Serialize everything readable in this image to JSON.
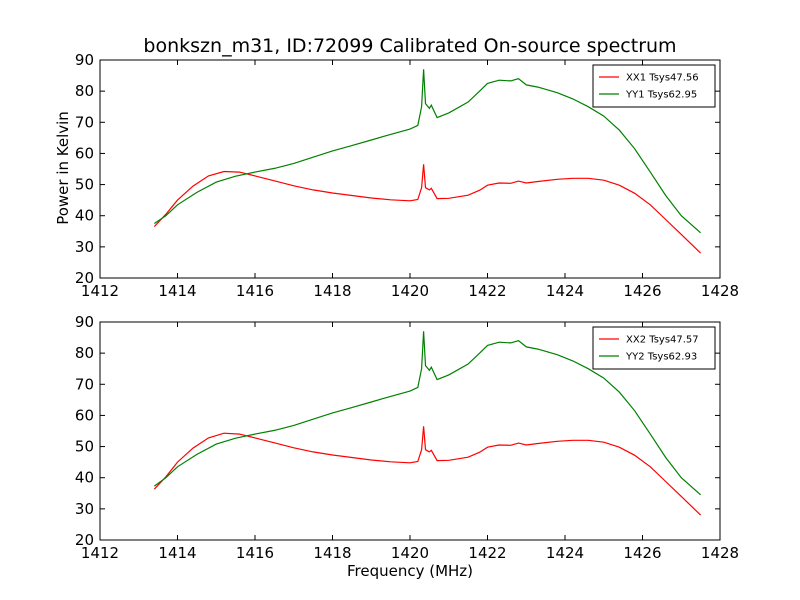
{
  "figure": {
    "title": "bonkszn_m31, ID:72099 Calibrated On-source spectrum",
    "xlabel": "Frequency (MHz)",
    "ylabel": "Power in Kelvin"
  },
  "chart_data": [
    {
      "type": "line",
      "title": "bonkszn_m31, ID:72099 Calibrated On-source spectrum",
      "xlabel": "",
      "ylabel": "Power in Kelvin",
      "xlim": [
        1412,
        1428
      ],
      "ylim": [
        20,
        90
      ],
      "xticks": [
        "1412",
        "1414",
        "1416",
        "1418",
        "1420",
        "1422",
        "1424",
        "1426",
        "1428"
      ],
      "yticks": [
        "20",
        "30",
        "40",
        "50",
        "60",
        "70",
        "80",
        "90"
      ],
      "grid": false,
      "legend_position": "top-right",
      "series": [
        {
          "name": "XX1 Tsys47.56",
          "color": "#ff0000",
          "x": [
            1413.4,
            1413.7,
            1414.0,
            1414.4,
            1414.8,
            1415.2,
            1415.6,
            1416.0,
            1416.5,
            1417.0,
            1417.5,
            1418.0,
            1418.5,
            1419.0,
            1419.5,
            1420.0,
            1420.2,
            1420.3,
            1420.35,
            1420.4,
            1420.5,
            1420.55,
            1420.7,
            1421.0,
            1421.5,
            1421.8,
            1422.0,
            1422.3,
            1422.6,
            1422.8,
            1423.0,
            1423.3,
            1423.8,
            1424.2,
            1424.6,
            1425.0,
            1425.4,
            1425.8,
            1426.2,
            1426.6,
            1427.0,
            1427.5
          ],
          "y": [
            36.5,
            40.5,
            45,
            49.5,
            52.8,
            54.2,
            54,
            52.8,
            51.2,
            49.6,
            48.3,
            47.3,
            46.5,
            45.7,
            45.1,
            44.8,
            45.2,
            49,
            56.5,
            49,
            48.3,
            48.8,
            45.5,
            45.6,
            46.6,
            48.2,
            49.8,
            50.5,
            50.4,
            51.1,
            50.5,
            51.0,
            51.7,
            52.0,
            52.0,
            51.4,
            49.8,
            47.2,
            43.5,
            38.8,
            34,
            28
          ]
        },
        {
          "name": "YY1 Tsys62.95",
          "color": "#008000",
          "x": [
            1413.4,
            1413.7,
            1414.0,
            1414.5,
            1415.0,
            1415.5,
            1416.0,
            1416.5,
            1417.0,
            1417.5,
            1418.0,
            1418.5,
            1419.0,
            1419.5,
            1420.0,
            1420.2,
            1420.3,
            1420.35,
            1420.4,
            1420.5,
            1420.55,
            1420.7,
            1421.0,
            1421.5,
            1421.8,
            1422.0,
            1422.3,
            1422.6,
            1422.8,
            1423.0,
            1423.3,
            1423.8,
            1424.2,
            1424.6,
            1425.0,
            1425.4,
            1425.8,
            1426.2,
            1426.6,
            1427.0,
            1427.5
          ],
          "y": [
            37.5,
            40,
            43.5,
            47.5,
            50.8,
            52.7,
            54,
            55.2,
            56.8,
            58.8,
            60.8,
            62.5,
            64.3,
            66.1,
            67.8,
            69,
            75,
            87,
            76,
            74.5,
            75.5,
            71.5,
            73,
            76.5,
            80,
            82.5,
            83.5,
            83.3,
            84,
            82,
            81.3,
            79.5,
            77.5,
            75,
            72,
            67.5,
            61.5,
            54,
            46.5,
            40,
            34.5
          ]
        }
      ]
    },
    {
      "type": "line",
      "title": "",
      "xlabel": "Frequency (MHz)",
      "ylabel": "",
      "xlim": [
        1412,
        1428
      ],
      "ylim": [
        20,
        90
      ],
      "xticks": [
        "1412",
        "1414",
        "1416",
        "1418",
        "1420",
        "1422",
        "1424",
        "1426",
        "1428"
      ],
      "yticks": [
        "20",
        "30",
        "40",
        "50",
        "60",
        "70",
        "80",
        "90"
      ],
      "grid": false,
      "legend_position": "top-right",
      "series": [
        {
          "name": "XX2 Tsys47.57",
          "color": "#ff0000",
          "x": [
            1413.4,
            1413.7,
            1414.0,
            1414.4,
            1414.8,
            1415.2,
            1415.6,
            1416.0,
            1416.5,
            1417.0,
            1417.5,
            1418.0,
            1418.5,
            1419.0,
            1419.5,
            1420.0,
            1420.2,
            1420.3,
            1420.35,
            1420.4,
            1420.5,
            1420.55,
            1420.7,
            1421.0,
            1421.5,
            1421.8,
            1422.0,
            1422.3,
            1422.6,
            1422.8,
            1423.0,
            1423.3,
            1423.8,
            1424.2,
            1424.6,
            1425.0,
            1425.4,
            1425.8,
            1426.2,
            1426.6,
            1427.0,
            1427.5
          ],
          "y": [
            36.3,
            40.3,
            45,
            49.5,
            52.8,
            54.3,
            54,
            52.8,
            51.2,
            49.6,
            48.3,
            47.3,
            46.5,
            45.7,
            45.1,
            44.8,
            45.2,
            49,
            56.5,
            49,
            48.3,
            48.8,
            45.5,
            45.6,
            46.6,
            48.2,
            49.8,
            50.5,
            50.4,
            51.1,
            50.5,
            51.0,
            51.7,
            52.0,
            52.0,
            51.4,
            49.8,
            47.2,
            43.5,
            38.8,
            34,
            28
          ]
        },
        {
          "name": "YY2 Tsys62.93",
          "color": "#008000",
          "x": [
            1413.4,
            1413.7,
            1414.0,
            1414.5,
            1415.0,
            1415.5,
            1416.0,
            1416.5,
            1417.0,
            1417.5,
            1418.0,
            1418.5,
            1419.0,
            1419.5,
            1420.0,
            1420.2,
            1420.3,
            1420.35,
            1420.4,
            1420.5,
            1420.55,
            1420.7,
            1421.0,
            1421.5,
            1421.8,
            1422.0,
            1422.3,
            1422.6,
            1422.8,
            1423.0,
            1423.3,
            1423.8,
            1424.2,
            1424.6,
            1425.0,
            1425.4,
            1425.8,
            1426.2,
            1426.6,
            1427.0,
            1427.5
          ],
          "y": [
            37.3,
            40,
            43.5,
            47.5,
            50.8,
            52.7,
            54,
            55.2,
            56.8,
            58.8,
            60.8,
            62.5,
            64.3,
            66.1,
            67.8,
            69,
            75,
            87,
            76,
            74.5,
            75.5,
            71.5,
            73,
            76.5,
            80,
            82.5,
            83.5,
            83.3,
            84,
            82,
            81.3,
            79.5,
            77.5,
            75,
            72,
            67.5,
            61.5,
            54,
            46.5,
            40,
            34.5
          ]
        }
      ]
    }
  ]
}
